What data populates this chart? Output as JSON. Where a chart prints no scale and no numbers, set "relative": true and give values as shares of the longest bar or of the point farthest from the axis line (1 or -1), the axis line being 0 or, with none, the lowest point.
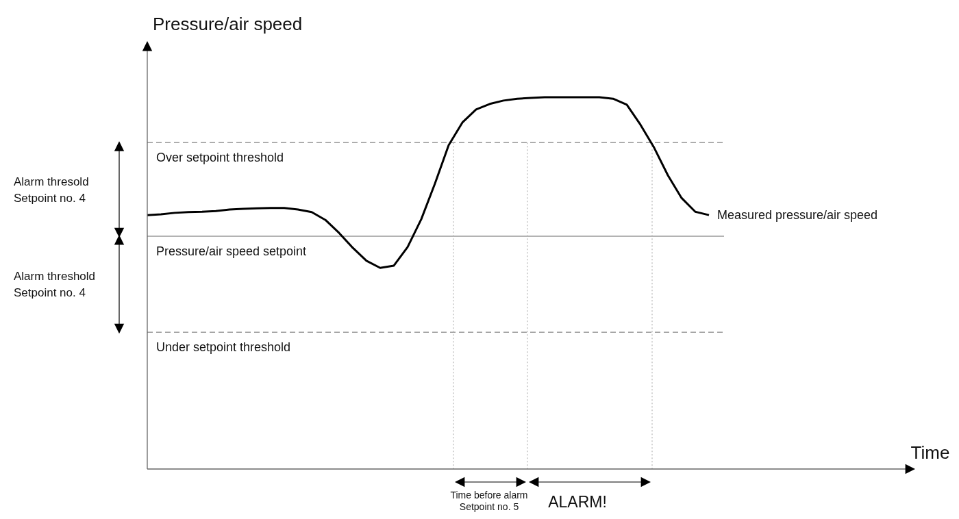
{
  "chart_data": {
    "type": "line",
    "relative": true,
    "ylabel": "Pressure/air speed",
    "marker": "none",
    "line_style": "solid",
    "categories": [
      null,
      null,
      null,
      null,
      null,
      null,
      null,
      null,
      null,
      null,
      null,
      null,
      null,
      null,
      null,
      null,
      null,
      null,
      null,
      null,
      null,
      null,
      null,
      null,
      null,
      null,
      null,
      null,
      null,
      null,
      null,
      null,
      null,
      null,
      null,
      null,
      null,
      null,
      null,
      null,
      null,
      null
    ],
    "series": [
      {
        "name": "Measured pressure/air speed",
        "color": "#000000",
        "values": [
          0.683,
          0.685,
          0.689,
          0.691,
          0.692,
          0.694,
          0.698,
          0.7,
          0.701,
          0.702,
          0.702,
          0.698,
          0.691,
          0.67,
          0.635,
          0.595,
          0.56,
          0.541,
          0.547,
          0.597,
          0.672,
          0.768,
          0.871,
          0.932,
          0.967,
          0.982,
          0.991,
          0.996,
          0.998,
          1.0,
          1.0,
          1.0,
          1.0,
          1.0,
          0.996,
          0.98,
          0.926,
          0.864,
          0.79,
          0.729,
          0.692,
          0.683
        ]
      }
    ],
    "ref_lines": [
      {
        "axis": "y",
        "value": 0.878,
        "label": "Over setpoint threshold",
        "color": "#9a9a9a",
        "line_style": "dashed"
      },
      {
        "axis": "y",
        "value": 0.626,
        "label": "Pressure/air speed setpoint",
        "color": "#9a9a9a",
        "line_style": "solid"
      },
      {
        "axis": "y",
        "value": 0.368,
        "label": "Under setpoint threshold",
        "color": "#9a9a9a",
        "line_style": "dashed"
      }
    ],
    "annotations": [
      "Alarm thresold\nSetpoint no. 4",
      "Alarm threshold\nSetpoint no. 4",
      "Time before alarm\nSetpoint no. 5",
      "ALARM!",
      "Time"
    ]
  }
}
